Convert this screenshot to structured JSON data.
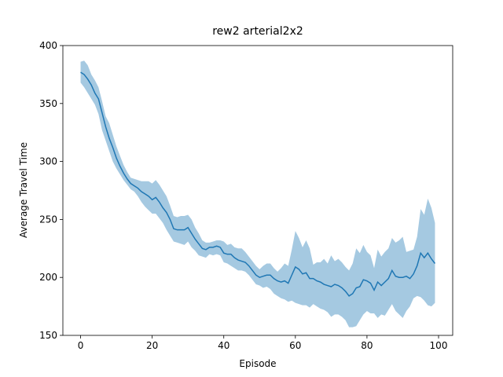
{
  "chart_data": {
    "type": "line",
    "title": "rew2 arterial2x2",
    "xlabel": "Episode",
    "ylabel": "Average Travel Time",
    "x": [
      0,
      1,
      2,
      3,
      4,
      5,
      6,
      7,
      8,
      9,
      10,
      11,
      12,
      13,
      14,
      15,
      16,
      17,
      18,
      19,
      20,
      21,
      22,
      23,
      24,
      25,
      26,
      27,
      28,
      29,
      30,
      31,
      32,
      33,
      34,
      35,
      36,
      37,
      38,
      39,
      40,
      41,
      42,
      43,
      44,
      45,
      46,
      47,
      48,
      49,
      50,
      51,
      52,
      53,
      54,
      55,
      56,
      57,
      58,
      59,
      60,
      61,
      62,
      63,
      64,
      65,
      66,
      67,
      68,
      69,
      70,
      71,
      72,
      73,
      74,
      75,
      76,
      77,
      78,
      79,
      80,
      81,
      82,
      83,
      84,
      85,
      86,
      87,
      88,
      89,
      90,
      91,
      92,
      93,
      94,
      95,
      96,
      97,
      98,
      99
    ],
    "series": [
      {
        "color": "#1f77b4",
        "values": [
          377,
          375,
          371,
          366,
          359,
          354,
          342,
          330,
          320,
          312,
          303,
          296,
          290,
          285,
          281,
          279,
          277,
          274,
          272,
          270,
          267,
          269,
          265,
          260,
          256,
          250,
          242,
          241,
          241,
          241,
          243,
          238,
          233,
          229,
          225,
          224,
          226,
          226,
          227,
          226,
          221,
          220,
          220,
          217,
          215,
          214,
          213,
          210,
          206,
          202,
          200,
          201,
          202,
          202,
          199,
          197,
          196,
          197,
          195,
          202,
          209,
          207,
          203,
          204,
          199,
          199,
          197,
          196,
          194,
          193,
          192,
          194,
          193,
          191,
          188,
          184,
          186,
          191,
          192,
          198,
          197,
          195,
          189,
          196,
          193,
          196,
          199,
          206,
          201,
          200,
          200,
          201,
          199,
          203,
          210,
          221,
          217,
          221,
          216,
          212
        ],
        "upper": [
          386,
          387,
          383,
          375,
          370,
          364,
          352,
          339,
          333,
          323,
          313,
          305,
          297,
          291,
          286,
          285,
          284,
          283,
          283,
          283,
          281,
          284,
          280,
          275,
          270,
          262,
          253,
          252,
          253,
          253,
          254,
          250,
          243,
          238,
          232,
          230,
          230,
          231,
          232,
          232,
          231,
          228,
          229,
          226,
          225,
          225,
          222,
          218,
          214,
          210,
          207,
          210,
          212,
          212,
          208,
          205,
          208,
          212,
          210,
          224,
          240,
          234,
          226,
          232,
          225,
          211,
          213,
          213,
          216,
          212,
          219,
          214,
          216,
          213,
          209,
          206,
          212,
          225,
          221,
          228,
          222,
          219,
          208,
          224,
          218,
          222,
          225,
          234,
          230,
          232,
          235,
          222,
          223,
          224,
          235,
          259,
          254,
          268,
          260,
          247
        ],
        "lower": [
          368,
          364,
          359,
          354,
          349,
          341,
          327,
          318,
          309,
          300,
          294,
          289,
          284,
          280,
          276,
          274,
          270,
          265,
          261,
          258,
          255,
          255,
          251,
          247,
          241,
          236,
          231,
          230,
          229,
          228,
          231,
          226,
          223,
          219,
          218,
          217,
          220,
          219,
          220,
          219,
          213,
          212,
          210,
          208,
          206,
          206,
          205,
          202,
          198,
          194,
          193,
          191,
          192,
          190,
          186,
          184,
          182,
          181,
          179,
          180,
          178,
          177,
          176,
          176,
          174,
          177,
          175,
          173,
          172,
          170,
          166,
          168,
          168,
          166,
          163,
          157,
          157,
          158,
          163,
          168,
          171,
          169,
          169,
          165,
          168,
          167,
          172,
          177,
          171,
          168,
          165,
          171,
          175,
          182,
          184,
          183,
          180,
          176,
          175,
          178
        ],
        "band_opacity": 0.4
      }
    ],
    "xlim": [
      -4.95,
      103.95
    ],
    "xticks": [
      0,
      20,
      40,
      60,
      80,
      100
    ],
    "ylim": [
      150,
      400
    ],
    "yticks": [
      150,
      200,
      250,
      300,
      350,
      400
    ]
  }
}
